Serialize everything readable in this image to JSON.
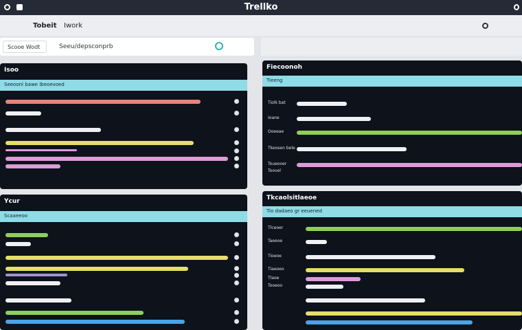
{
  "header": {
    "title": "Trellko"
  },
  "toolbar": {
    "items": [
      "Tobeit",
      "Iwork"
    ]
  },
  "search": {
    "button": "Scooe Wodt",
    "placeholder": "Seeu/depsconprb"
  },
  "panels": [
    {
      "title": "Isoo",
      "banner": "Seeoonl bawe Ibeoevoed",
      "labels": []
    },
    {
      "title": "Fiecoonoh",
      "banner": "Tieeng",
      "labels": [
        "Tiolk bat",
        "Ioane",
        "Ooeeae",
        "Tkeosen bele",
        "Toueooer",
        "Toovel"
      ]
    },
    {
      "title": "Ycur",
      "banner": "Scaaeeoo",
      "labels": []
    },
    {
      "title": "Tkcaolsitlaeoe",
      "banner": "Tio dadaeo gr eeuened",
      "labels": [
        "Tlceoer",
        "Taeeoe",
        "Tioeoe",
        "Tiaeoeo",
        "Tlaoe",
        "Tooeoo"
      ]
    }
  ]
}
